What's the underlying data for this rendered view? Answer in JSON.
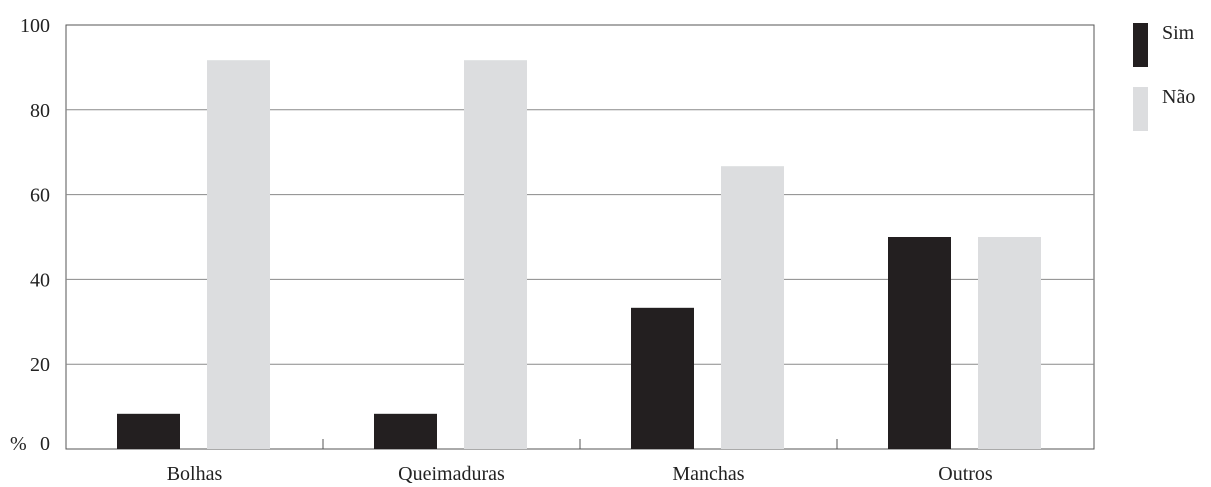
{
  "chart_data": {
    "type": "bar",
    "categories": [
      "Bolhas",
      "Queimaduras",
      "Manchas",
      "Outros"
    ],
    "series": [
      {
        "name": "Sim",
        "values": [
          8.3,
          8.3,
          33.3,
          50
        ],
        "color": "#231f20"
      },
      {
        "name": "Não",
        "values": [
          91.7,
          91.7,
          66.7,
          50
        ],
        "color": "#dcdddf"
      }
    ],
    "title": "",
    "xlabel": "",
    "ylabel": "%",
    "ylim": [
      0,
      100
    ],
    "yticks": [
      0,
      20,
      40,
      60,
      80,
      100
    ],
    "grid": true,
    "legend": "right"
  }
}
